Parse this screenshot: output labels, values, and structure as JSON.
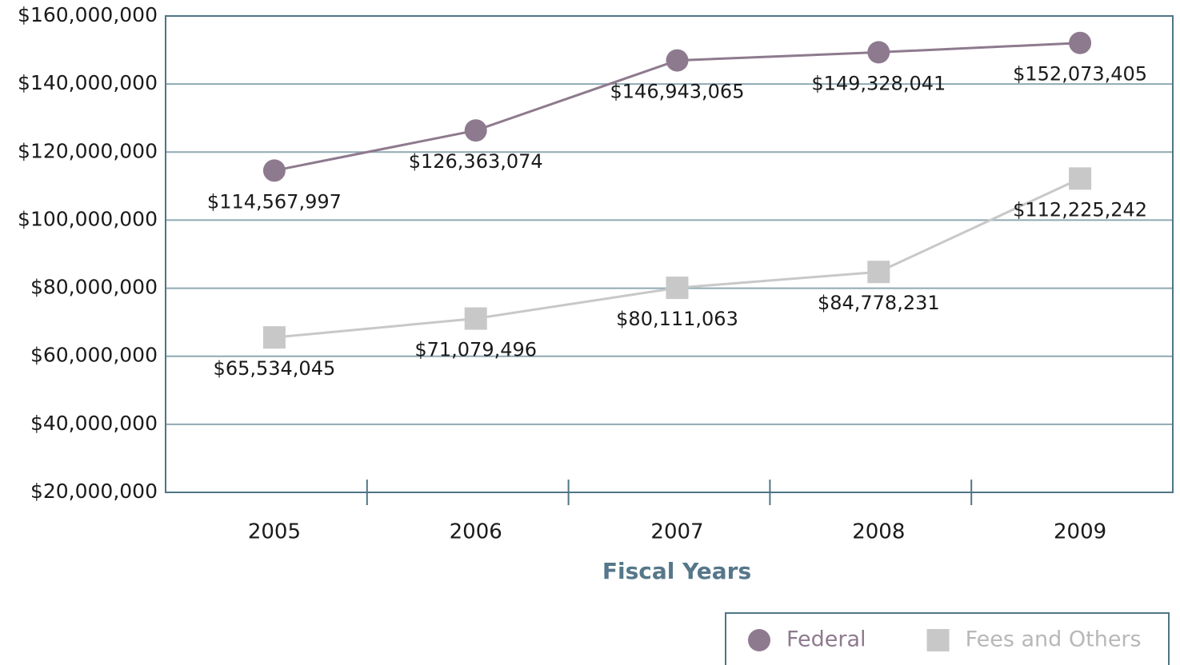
{
  "chart_data": {
    "type": "line",
    "x_label": "Fiscal Years",
    "categories": [
      "2005",
      "2006",
      "2007",
      "2008",
      "2009"
    ],
    "series": [
      {
        "name": "Federal",
        "color": "#8e7a8e",
        "marker": "circle",
        "values": [
          114567997,
          126363074,
          146943065,
          149328041,
          152073405
        ],
        "value_labels": [
          "$114,567,997",
          "$126,363,074",
          "$146,943,065",
          "$149,328,041",
          "$152,073,405"
        ]
      },
      {
        "name": "Fees and Others",
        "color": "#c8c8c8",
        "marker": "square",
        "values": [
          65534045,
          71079496,
          80111063,
          84778231,
          112225242
        ],
        "value_labels": [
          "$65,534,045",
          "$71,079,496",
          "$80,111,063",
          "$84,778,231",
          "$112,225,242"
        ]
      }
    ],
    "ylim": [
      20000000,
      160000000
    ],
    "yticks": [
      {
        "value": 20000000,
        "label": "$20,000,000"
      },
      {
        "value": 40000000,
        "label": "$40,000,000"
      },
      {
        "value": 60000000,
        "label": "$60,000,000"
      },
      {
        "value": 80000000,
        "label": "$80,000,000"
      },
      {
        "value": 100000000,
        "label": "$100,000,000"
      },
      {
        "value": 120000000,
        "label": "$120,000,000"
      },
      {
        "value": 140000000,
        "label": "$140,000,000"
      },
      {
        "value": 160000000,
        "label": "$160,000,000"
      }
    ],
    "grid": true,
    "legend": "bottom-right"
  }
}
